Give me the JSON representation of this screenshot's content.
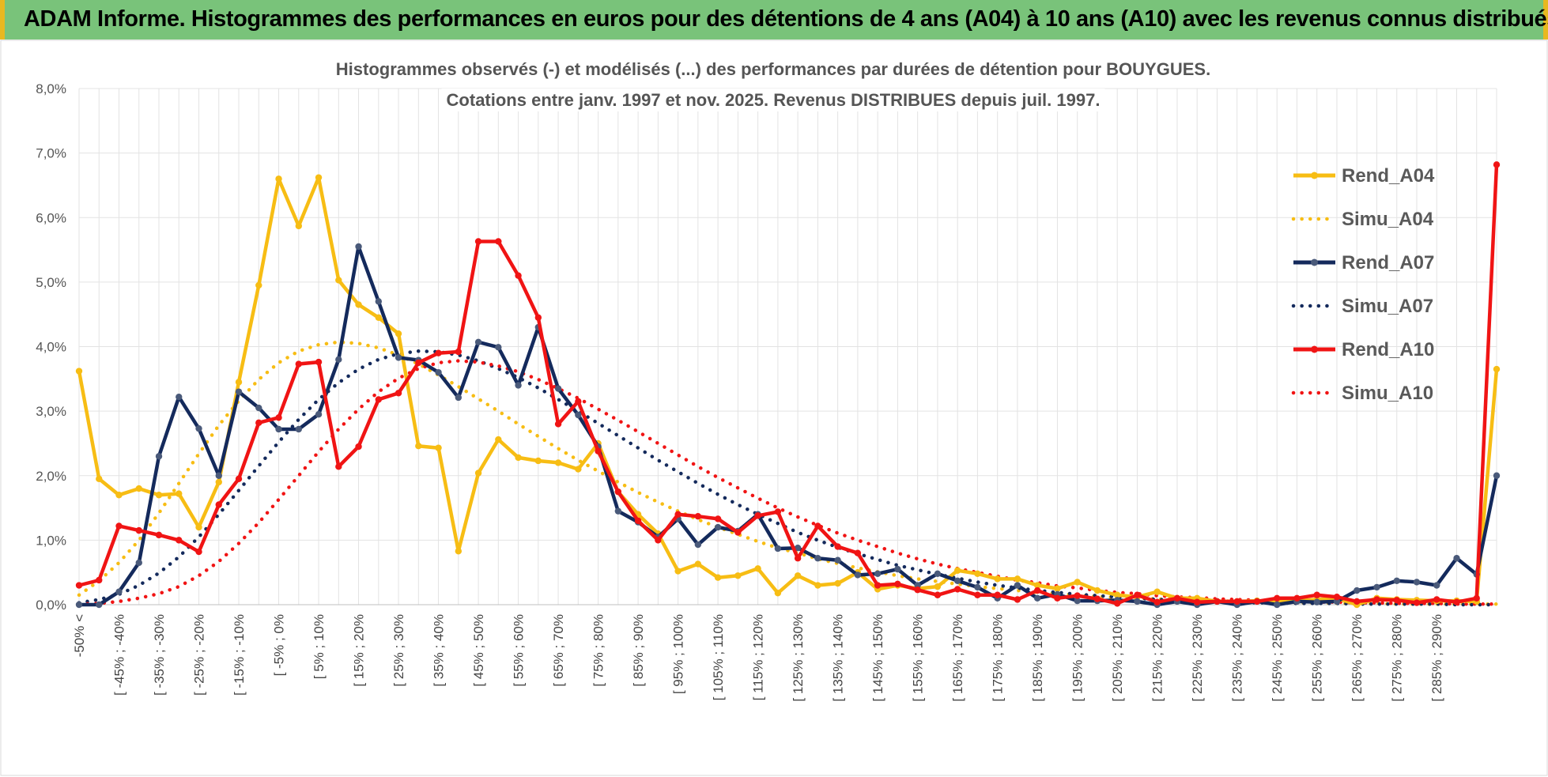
{
  "banner": {
    "title": "ADAM Informe. Histogrammes des performances en euros pour des détentions de 4 ans (A04) à 10 ans (A10) avec les revenus connus distribués"
  },
  "colors": {
    "banner_bg": "#79c37a",
    "a04": "#f7bd14",
    "a07": "#142a5c",
    "a10": "#f01414"
  },
  "chart_data": {
    "type": "line",
    "title_lines": [
      "Histogrammes observés (-) et modélisés (...) des performances par durées de détention pour BOUYGUES.",
      "Cotations entre janv. 1997 et nov. 2025. Revenus DISTRIBUES depuis juil. 1997."
    ],
    "ylim": [
      0,
      8
    ],
    "yticks": [
      "0,0%",
      "1,0%",
      "2,0%",
      "3,0%",
      "4,0%",
      "5,0%",
      "6,0%",
      "7,0%",
      "8,0%"
    ],
    "grid": true,
    "legend_position": "top-right",
    "xtick_labels": [
      "-50% <",
      "[ -45% ; -40%",
      "[ -35% ; -30%",
      "[ -25% ; -20%",
      "[ -15% ; -10%",
      "[ -5% ; 0%",
      "[ 5% ; 10%",
      "[ 15% ; 20%",
      "[ 25% ; 30%",
      "[ 35% ; 40%",
      "[ 45% ; 50%",
      "[ 55% ; 60%",
      "[ 65% ; 70%",
      "[ 75% ; 80%",
      "[ 85% ; 90%",
      "[ 95% ; 100%",
      "[ 105% ; 110%",
      "[ 115% ; 120%",
      "[ 125% ; 130%",
      "[ 135% ; 140%",
      "[ 145% ; 150%",
      "[ 155% ; 160%",
      "[ 165% ; 170%",
      "[ 175% ; 180%",
      "[ 185% ; 190%",
      "[ 195% ; 200%",
      "[ 205% ; 210%",
      "[ 215% ; 220%",
      "[ 225% ; 230%",
      "[ 235% ; 240%",
      "[ 245% ; 250%",
      "[ 255% ; 260%",
      "[ 265% ; 270%",
      "[ 275% ; 280%",
      "[ 285% ; 290%"
    ],
    "series": [
      {
        "name": "Rend_A04",
        "style": "solid",
        "color": "#f7bd14",
        "values": [
          3.62,
          1.95,
          1.7,
          1.8,
          1.7,
          1.72,
          1.2,
          1.9,
          3.45,
          4.95,
          6.6,
          5.87,
          6.62,
          5.03,
          4.65,
          4.45,
          4.2,
          2.46,
          2.43,
          0.83,
          2.04,
          2.56,
          2.28,
          2.23,
          2.2,
          2.1,
          2.5,
          1.75,
          1.4,
          1.1,
          0.52,
          0.63,
          0.42,
          0.45,
          0.56,
          0.18,
          0.45,
          0.3,
          0.33,
          0.5,
          0.24,
          0.3,
          0.25,
          0.28,
          0.53,
          0.48,
          0.4,
          0.4,
          0.3,
          0.25,
          0.35,
          0.22,
          0.15,
          0.12,
          0.2,
          0.1,
          0.1,
          0.05,
          0.05,
          0.06,
          0.05,
          0.06,
          0.08,
          0.1,
          0.0,
          0.1,
          0.08,
          0.07,
          0.06,
          0.06,
          0.05,
          3.65
        ]
      },
      {
        "name": "Simu_A04",
        "style": "dotted",
        "color": "#f7bd14",
        "values": [
          0.15,
          0.37,
          0.65,
          1.0,
          1.42,
          1.88,
          2.34,
          2.78,
          3.16,
          3.49,
          3.75,
          3.93,
          4.03,
          4.07,
          4.05,
          3.98,
          3.87,
          3.73,
          3.56,
          3.38,
          3.19,
          3.0,
          2.8,
          2.61,
          2.42,
          2.24,
          2.07,
          1.9,
          1.74,
          1.59,
          1.45,
          1.32,
          1.2,
          1.09,
          0.98,
          0.88,
          0.8,
          0.71,
          0.64,
          0.57,
          0.51,
          0.45,
          0.4,
          0.36,
          0.32,
          0.28,
          0.25,
          0.22,
          0.19,
          0.17,
          0.15,
          0.13,
          0.11,
          0.1,
          0.09,
          0.08,
          0.07,
          0.06,
          0.05,
          0.04,
          0.04,
          0.03,
          0.03,
          0.02,
          0.02,
          0.02,
          0.01,
          0.01,
          0.01,
          0.01,
          0.01,
          0.01
        ]
      },
      {
        "name": "Rend_A07",
        "style": "solid",
        "color": "#142a5c",
        "values": [
          0.0,
          0.0,
          0.2,
          0.65,
          2.3,
          3.22,
          2.73,
          2.0,
          3.3,
          3.05,
          2.72,
          2.72,
          2.95,
          3.8,
          5.55,
          4.7,
          3.83,
          3.79,
          3.6,
          3.21,
          4.07,
          3.99,
          3.4,
          4.3,
          3.35,
          2.94,
          2.45,
          1.45,
          1.28,
          1.05,
          1.33,
          0.93,
          1.2,
          1.14,
          1.4,
          0.87,
          0.88,
          0.72,
          0.69,
          0.46,
          0.48,
          0.55,
          0.3,
          0.48,
          0.37,
          0.27,
          0.1,
          0.3,
          0.1,
          0.16,
          0.06,
          0.06,
          0.07,
          0.05,
          0.0,
          0.05,
          0.0,
          0.05,
          0.0,
          0.05,
          0.0,
          0.05,
          0.04,
          0.05,
          0.22,
          0.27,
          0.37,
          0.35,
          0.3,
          0.72,
          0.47,
          2.0
        ]
      },
      {
        "name": "Simu_A07",
        "style": "dotted",
        "color": "#142a5c",
        "values": [
          0.03,
          0.08,
          0.16,
          0.3,
          0.49,
          0.74,
          1.05,
          1.4,
          1.77,
          2.15,
          2.52,
          2.87,
          3.18,
          3.44,
          3.65,
          3.8,
          3.89,
          3.93,
          3.92,
          3.87,
          3.78,
          3.66,
          3.52,
          3.36,
          3.18,
          3.0,
          2.81,
          2.62,
          2.43,
          2.24,
          2.06,
          1.88,
          1.71,
          1.55,
          1.4,
          1.26,
          1.12,
          1.0,
          0.89,
          0.79,
          0.7,
          0.61,
          0.54,
          0.47,
          0.41,
          0.35,
          0.3,
          0.26,
          0.22,
          0.19,
          0.16,
          0.14,
          0.12,
          0.1,
          0.08,
          0.07,
          0.06,
          0.05,
          0.04,
          0.03,
          0.03,
          0.02,
          0.02,
          0.02,
          0.01,
          0.01,
          0.01,
          0.01,
          0.01,
          0.0,
          0.0,
          0.0
        ]
      },
      {
        "name": "Rend_A10",
        "style": "solid",
        "color": "#f01414",
        "values": [
          0.3,
          0.38,
          1.22,
          1.15,
          1.08,
          1.0,
          0.82,
          1.55,
          1.95,
          2.82,
          2.9,
          3.73,
          3.76,
          2.14,
          2.45,
          3.18,
          3.28,
          3.75,
          3.9,
          3.92,
          5.63,
          5.63,
          5.1,
          4.45,
          2.8,
          3.15,
          2.38,
          1.75,
          1.3,
          1.0,
          1.4,
          1.37,
          1.33,
          1.12,
          1.38,
          1.44,
          0.72,
          1.22,
          0.9,
          0.8,
          0.3,
          0.32,
          0.23,
          0.15,
          0.24,
          0.15,
          0.15,
          0.08,
          0.22,
          0.1,
          0.14,
          0.09,
          0.02,
          0.15,
          0.04,
          0.1,
          0.04,
          0.05,
          0.05,
          0.05,
          0.1,
          0.1,
          0.15,
          0.12,
          0.05,
          0.08,
          0.07,
          0.03,
          0.08,
          0.04,
          0.1,
          6.82
        ]
      },
      {
        "name": "Simu_A10",
        "style": "dotted",
        "color": "#f01414",
        "values": [
          0.01,
          0.02,
          0.05,
          0.1,
          0.17,
          0.28,
          0.45,
          0.67,
          0.95,
          1.27,
          1.63,
          2.0,
          2.37,
          2.72,
          3.03,
          3.3,
          3.51,
          3.66,
          3.75,
          3.78,
          3.76,
          3.7,
          3.61,
          3.49,
          3.35,
          3.2,
          3.03,
          2.86,
          2.68,
          2.5,
          2.32,
          2.14,
          1.97,
          1.81,
          1.65,
          1.5,
          1.36,
          1.23,
          1.11,
          1.0,
          0.9,
          0.8,
          0.71,
          0.63,
          0.56,
          0.5,
          0.44,
          0.38,
          0.34,
          0.29,
          0.26,
          0.22,
          0.19,
          0.17,
          0.14,
          0.12,
          0.11,
          0.09,
          0.08,
          0.07,
          0.06,
          0.05,
          0.04,
          0.04,
          0.03,
          0.03,
          0.02,
          0.02,
          0.02,
          0.01,
          0.01,
          0.01
        ]
      }
    ]
  }
}
